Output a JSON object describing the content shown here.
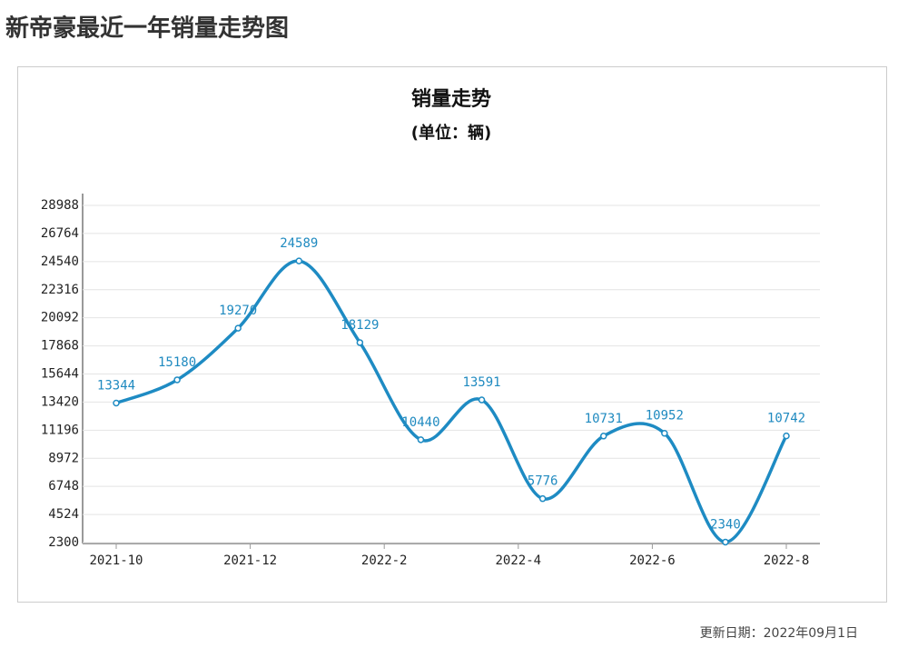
{
  "page_title": "新帝豪最近一年销量走势图",
  "chart_data": {
    "type": "line",
    "title": "销量走势",
    "subtitle": "(单位：辆)",
    "x": [
      0,
      1,
      2,
      3,
      4,
      5,
      6,
      7,
      8,
      9,
      10,
      11
    ],
    "xlim": [
      0,
      11
    ],
    "xticks": [
      {
        "value": 0,
        "label": "2021-10"
      },
      {
        "value": 2.2,
        "label": "2021-12"
      },
      {
        "value": 4.4,
        "label": "2022-2"
      },
      {
        "value": 6.6,
        "label": "2022-4"
      },
      {
        "value": 8.8,
        "label": "2022-6"
      },
      {
        "value": 11,
        "label": "2022-8"
      }
    ],
    "series": [
      {
        "color": "#1e8bc3",
        "values": [
          13344,
          15180,
          19270,
          24589,
          18129,
          10440,
          13591,
          5776,
          10731,
          10952,
          2340,
          10742
        ]
      }
    ],
    "ylim": [
      2300,
      28988
    ],
    "yticks": [
      2300,
      4524,
      6748,
      8972,
      11196,
      13420,
      15644,
      17868,
      20092,
      22316,
      24540,
      26764,
      28988
    ],
    "grid": true
  },
  "footer": "更新日期：2022年09月1日"
}
